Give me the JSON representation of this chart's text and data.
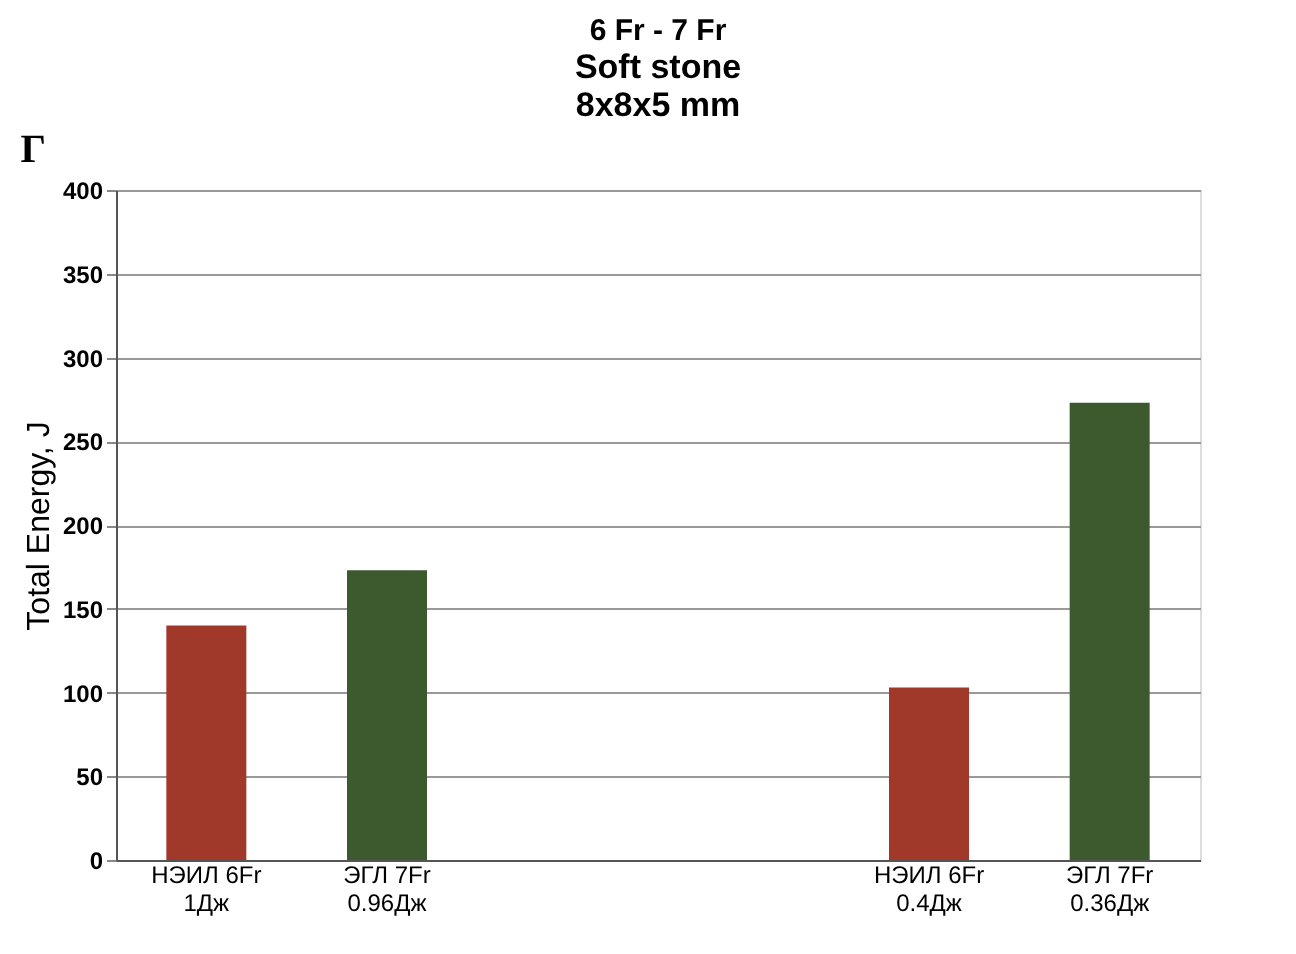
{
  "chart_data": {
    "type": "bar",
    "title": "6 Fr - 7 Fr",
    "subtitle": "Soft stone\n8x8x5 mm",
    "ylabel": "Total Energy, J",
    "categories": [
      "НЭИЛ 6Fr\n1Дж",
      "ЭГЛ 7Fr\n0.96Дж",
      null,
      null,
      "НЭИЛ 6Fr\n0.4Дж",
      "ЭГЛ 7Fr\n0.36Дж"
    ],
    "values": [
      140,
      173,
      null,
      null,
      103,
      273
    ],
    "colors": [
      "#a0392a",
      "#3d5a2e",
      null,
      null,
      "#a0392a",
      "#3d5a2e"
    ],
    "ylim": [
      0,
      400
    ],
    "yticks": [
      0,
      50,
      100,
      150,
      200,
      250,
      300,
      350,
      400
    ],
    "grid": "y",
    "annotations": [
      "Г"
    ]
  }
}
